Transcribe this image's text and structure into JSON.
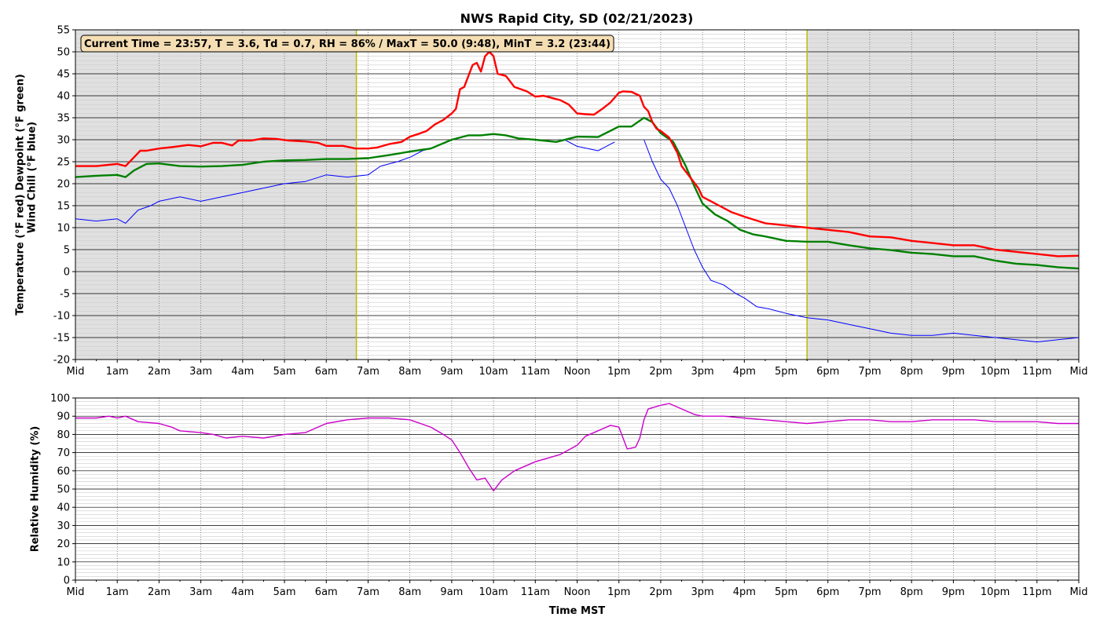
{
  "chart_data": [
    {
      "type": "line",
      "title": "NWS Rapid City, SD (02/21/2023)",
      "ylabel_line1": "Temperature (°F red)  Dewpoint (°F green)",
      "ylabel_line2": "Wind Chill (°F blue)",
      "info": "Current Time = 23:57, T = 3.6, Td = 0.7, RH = 86% / MaxT = 50.0 (9:48), MinT = 3.2 (23:44)",
      "ylim": [
        -20,
        55
      ],
      "yticks": [
        -20,
        -15,
        -10,
        -5,
        0,
        5,
        10,
        15,
        20,
        25,
        30,
        35,
        40,
        45,
        50,
        55
      ],
      "xlim_hours": [
        0,
        24
      ],
      "xtick_labels": [
        "Mid",
        "1am",
        "2am",
        "3am",
        "4am",
        "5am",
        "6am",
        "7am",
        "8am",
        "9am",
        "10am",
        "11am",
        "Noon",
        "1pm",
        "2pm",
        "3pm",
        "4pm",
        "5pm",
        "6pm",
        "7pm",
        "8pm",
        "9pm",
        "10pm",
        "11pm",
        "Mid"
      ],
      "night_shading_hours": [
        [
          0,
          6.72
        ],
        [
          17.5,
          24
        ]
      ],
      "sun_lines_hours": [
        6.72,
        17.5
      ],
      "grid": true,
      "colors": {
        "temperature": "#ff0000",
        "dewpoint": "#008000",
        "windchill": "#0000ff",
        "night": "#e0e0e0",
        "sunline": "#bbbb00",
        "infobox": "#f5deb3"
      },
      "series": [
        {
          "key": "temperature",
          "x": [
            0,
            0.5,
            1,
            1.2,
            1.4,
            1.55,
            1.7,
            2,
            2.3,
            2.7,
            3,
            3.3,
            3.5,
            3.75,
            3.9,
            4.2,
            4.5,
            4.8,
            5.1,
            5.5,
            5.8,
            6,
            6.4,
            6.7,
            7,
            7.2,
            7.5,
            7.8,
            8,
            8.2,
            8.4,
            8.6,
            8.8,
            9,
            9.1,
            9.2,
            9.3,
            9.5,
            9.6,
            9.7,
            9.8,
            9.9,
            10,
            10.1,
            10.3,
            10.5,
            10.8,
            11,
            11.2,
            11.4,
            11.6,
            11.8,
            12,
            12.2,
            12.4,
            12.6,
            12.8,
            13,
            13.1,
            13.3,
            13.5,
            13.6,
            13.7,
            13.8,
            13.9,
            14,
            14.2,
            14.4,
            14.5,
            14.7,
            14.9,
            15,
            15.2,
            15.4,
            15.7,
            16,
            16.5,
            17,
            17.5,
            18,
            18.5,
            19,
            19.5,
            20,
            20.5,
            21,
            21.5,
            22,
            22.5,
            23,
            23.5,
            24
          ],
          "y": [
            24,
            24,
            24.5,
            24,
            26,
            27.5,
            27.5,
            28,
            28.3,
            28.8,
            28.5,
            29.3,
            29.3,
            28.7,
            29.8,
            29.8,
            30.3,
            30.2,
            29.8,
            29.6,
            29.3,
            28.6,
            28.6,
            28,
            28,
            28.2,
            29,
            29.5,
            30.7,
            31.3,
            32,
            33.5,
            34.5,
            36,
            37,
            41.5,
            42,
            47,
            47.5,
            45.5,
            49,
            50,
            49,
            45,
            44.5,
            42,
            41,
            39.8,
            40,
            39.5,
            39,
            38,
            36,
            35.8,
            35.7,
            37,
            38.5,
            40.7,
            41,
            40.9,
            40,
            37.5,
            36.5,
            34,
            32.5,
            32,
            30.5,
            27,
            24,
            21.5,
            19,
            17,
            16,
            15,
            13.5,
            12.5,
            11,
            10.5,
            10,
            9.5,
            9,
            8,
            7.8,
            7,
            6.5,
            6,
            6,
            5,
            4.5,
            4,
            3.5,
            3.6
          ]
        },
        {
          "key": "dewpoint",
          "x": [
            0,
            0.5,
            1,
            1.2,
            1.4,
            1.7,
            2,
            2.5,
            3,
            3.5,
            4,
            4.5,
            5,
            5.5,
            6,
            6.5,
            7,
            7.5,
            8,
            8.5,
            9,
            9.4,
            9.7,
            10,
            10.3,
            10.6,
            11,
            11.5,
            12,
            12.5,
            13,
            13.3,
            13.6,
            13.8,
            14,
            14.3,
            14.6,
            14.8,
            15,
            15.3,
            15.6,
            15.9,
            16.2,
            16.5,
            17,
            17.5,
            18,
            18.5,
            19,
            19.5,
            20,
            20.5,
            21,
            21.5,
            22,
            22.5,
            23,
            23.5,
            24
          ],
          "y": [
            21.5,
            21.8,
            22,
            21.5,
            23,
            24.5,
            24.6,
            24,
            23.9,
            24,
            24.3,
            25,
            25.3,
            25.4,
            25.6,
            25.6,
            25.8,
            26.5,
            27.3,
            28,
            30,
            31,
            31,
            31.3,
            31,
            30.3,
            30,
            29.5,
            30.7,
            30.6,
            33,
            33,
            35,
            34,
            31.5,
            29.5,
            24,
            19.5,
            15.5,
            13,
            11.5,
            9.5,
            8.5,
            8,
            7,
            6.8,
            6.8,
            6,
            5.3,
            4.9,
            4.3,
            4,
            3.5,
            3.5,
            2.5,
            1.8,
            1.5,
            1,
            0.7
          ]
        },
        {
          "key": "windchill",
          "x": [
            0,
            0.5,
            1,
            1.2,
            1.5,
            1.8,
            2,
            2.5,
            3,
            3.5,
            4,
            4.5,
            5,
            5.5,
            6,
            6.5,
            7,
            7.3,
            7.7,
            8,
            8.3,
            8.5,
            null,
            11.7,
            12,
            12.5,
            12.9,
            null,
            13.6,
            13.8,
            14,
            14.2,
            14.4,
            14.6,
            14.8,
            15,
            15.2,
            15.5,
            15.8,
            16,
            16.3,
            16.6,
            17,
            17.5,
            18,
            18.5,
            19,
            19.5,
            20,
            20.5,
            21,
            21.5,
            22,
            22.5,
            23,
            23.5,
            24
          ],
          "y": [
            12,
            11.5,
            12,
            11,
            14,
            15,
            16,
            17,
            16,
            17,
            18,
            19,
            20,
            20.5,
            22,
            21.5,
            22,
            24,
            25,
            26,
            27.5,
            28,
            null,
            30,
            28.5,
            27.5,
            29.5,
            null,
            30,
            25,
            21,
            19,
            15,
            10,
            5,
            1,
            -2,
            -3,
            -5,
            -6,
            -8,
            -8.5,
            -9.5,
            -10.5,
            -11,
            -12,
            -13,
            -14,
            -14.5,
            -14.5,
            -14,
            -14.5,
            -15,
            -15.5,
            -16,
            -15.5,
            -15
          ]
        }
      ]
    },
    {
      "type": "line",
      "ylabel": "Relative Humidity (%)",
      "xlabel": "Time MST",
      "ylim": [
        0,
        100
      ],
      "yticks": [
        0,
        10,
        20,
        30,
        40,
        50,
        60,
        70,
        80,
        90,
        100
      ],
      "xlim_hours": [
        0,
        24
      ],
      "xtick_labels": [
        "Mid",
        "1am",
        "2am",
        "3am",
        "4am",
        "5am",
        "6am",
        "7am",
        "8am",
        "9am",
        "10am",
        "11am",
        "Noon",
        "1pm",
        "2pm",
        "3pm",
        "4pm",
        "5pm",
        "6pm",
        "7pm",
        "8pm",
        "9pm",
        "10pm",
        "11pm",
        "Mid"
      ],
      "grid": true,
      "colors": {
        "rh": "#cc00cc"
      },
      "series": [
        {
          "key": "rh",
          "x": [
            0,
            0.5,
            0.8,
            1,
            1.2,
            1.5,
            2,
            2.3,
            2.5,
            3,
            3.3,
            3.6,
            4,
            4.5,
            5,
            5.5,
            6,
            6.5,
            7,
            7.5,
            8,
            8.5,
            8.8,
            9,
            9.2,
            9.4,
            9.6,
            9.8,
            10,
            10.2,
            10.5,
            10.8,
            11,
            11.3,
            11.6,
            12,
            12.2,
            12.5,
            12.8,
            13,
            13.2,
            13.4,
            13.5,
            13.6,
            13.7,
            14,
            14.2,
            14.5,
            14.8,
            15,
            15.5,
            16,
            16.5,
            17,
            17.5,
            18,
            18.5,
            19,
            19.5,
            20,
            20.5,
            21,
            21.5,
            22,
            22.5,
            23,
            23.5,
            24
          ],
          "y": [
            89,
            89,
            90,
            89,
            90,
            87,
            86,
            84,
            82,
            81,
            80,
            78,
            79,
            78,
            80,
            81,
            86,
            88,
            89,
            89,
            88,
            84,
            80,
            77,
            70,
            62,
            55,
            56,
            49,
            55,
            60,
            63,
            65,
            67,
            69,
            74,
            79,
            82,
            85,
            84,
            72,
            73,
            78,
            88,
            94,
            96,
            97,
            94,
            91,
            90,
            90,
            89,
            88,
            87,
            86,
            87,
            88,
            88,
            87,
            87,
            88,
            88,
            88,
            87,
            87,
            87,
            86,
            86
          ]
        }
      ]
    }
  ]
}
